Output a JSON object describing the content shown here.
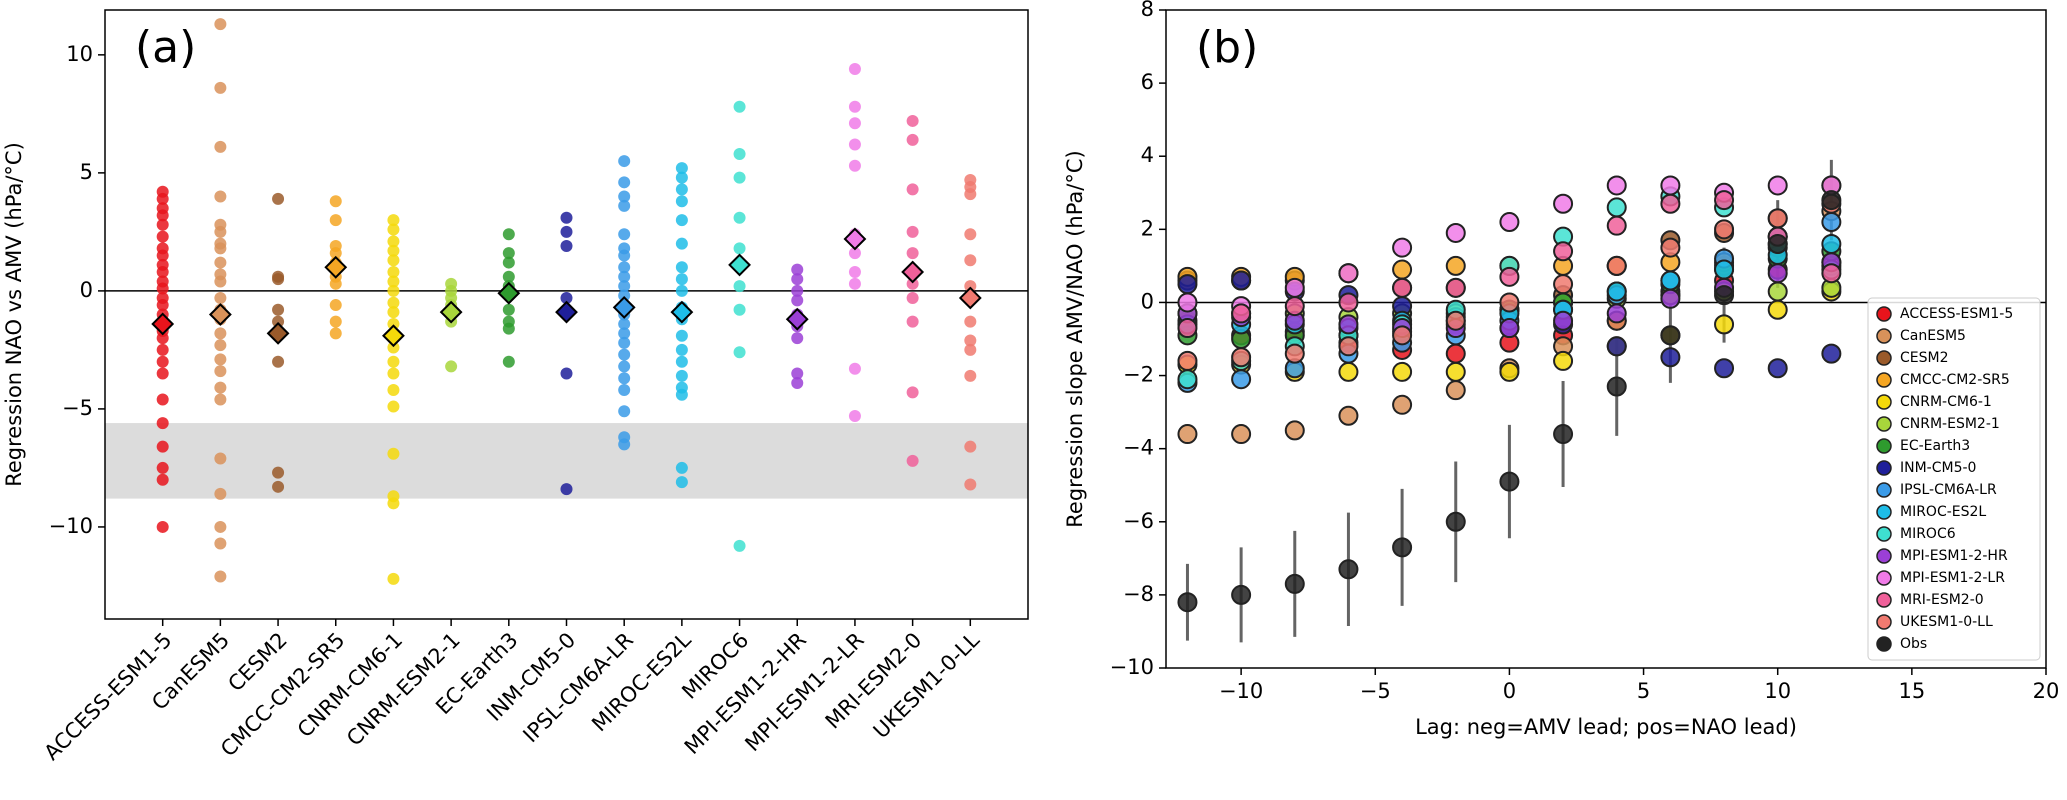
{
  "chart_data": [
    {
      "type": "strip",
      "panel_label": "(a)",
      "ylabel": "Regression NAO vs AMV (hPa/°C)",
      "categories": [
        "ACCESS-ESM1-5",
        "CanESM5",
        "CESM2",
        "CMCC-CM2-SR5",
        "CNRM-CM6-1",
        "CNRM-ESM2-1",
        "EC-Earth3",
        "INM-CM5-0",
        "IPSL-CM6A-LR",
        "MIROC-ES2L",
        "MIROC6",
        "MPI-ESM1-2-HR",
        "MPI-ESM1-2-LR",
        "MRI-ESM2-0",
        "UKESM1-0-LL"
      ],
      "colors": [
        "#e8141c",
        "#d9925a",
        "#9a5a2a",
        "#f5a623",
        "#f5d90a",
        "#a8d63b",
        "#2e9b2e",
        "#1f1f9a",
        "#3a9be8",
        "#1ebde8",
        "#3ee0d0",
        "#9b3fd6",
        "#f07be8",
        "#f0609a",
        "#f07a70"
      ],
      "members": [
        [
          4.2,
          3.9,
          3.5,
          3.2,
          2.8,
          2.3,
          1.8,
          1.5,
          1.1,
          0.8,
          0.4,
          0.1,
          -0.3,
          -0.6,
          -1,
          -1.3,
          -1.7,
          -2,
          -2.5,
          -3,
          -3.5,
          -4.6,
          -5.6,
          -6.6,
          -7.5,
          -8,
          -10
        ],
        [
          11.3,
          8.6,
          6.1,
          4,
          2.8,
          2.5,
          2,
          1.8,
          1.2,
          0.7,
          0.4,
          -0.3,
          -0.8,
          -1.2,
          -1.8,
          -2.3,
          -2.9,
          -3.4,
          -4.1,
          -4.6,
          -7.1,
          -8.6,
          -10,
          -10.7,
          -12.1
        ],
        [
          3.9,
          0.6,
          0.5,
          -0.8,
          -1.3,
          -1.9,
          -3,
          -7.7,
          -8.3
        ],
        [
          3.8,
          3,
          1.9,
          1.6,
          1.2,
          0.6,
          0.3,
          -0.6,
          -1.3,
          -1.8
        ],
        [
          3,
          2.6,
          2.1,
          1.7,
          1.3,
          0.8,
          0.4,
          0,
          -0.5,
          -0.9,
          -1.4,
          -1.8,
          -2.4,
          -3,
          -3.5,
          -4.2,
          -4.9,
          -6.9,
          -8.7,
          -9,
          -12.2
        ],
        [
          0.3,
          0,
          -0.3,
          -0.6,
          -1.3,
          -3.2
        ],
        [
          2.4,
          1.6,
          1.2,
          0.6,
          0.2,
          -0.2,
          -0.8,
          -1.3,
          -1.6,
          -3
        ],
        [
          3.1,
          2.5,
          1.9,
          -0.3,
          -0.9,
          -3.5,
          -8.4
        ],
        [
          5.5,
          4.6,
          4,
          3.6,
          2.4,
          1.8,
          1.5,
          1,
          0.6,
          0.2,
          -0.2,
          -0.6,
          -1,
          -1.4,
          -1.8,
          -2.2,
          -2.7,
          -3.2,
          -3.7,
          -4.2,
          -5.1,
          -6.2,
          -6.5
        ],
        [
          5.2,
          4.8,
          4.3,
          3.8,
          3,
          2,
          1,
          0.5,
          0,
          -0.7,
          -1.2,
          -1.9,
          -2.5,
          -3,
          -3.6,
          -4.1,
          -4.4,
          -7.5,
          -8.1
        ],
        [
          7.8,
          5.8,
          4.8,
          3.1,
          1.8,
          1.1,
          0.2,
          -0.8,
          -2.6,
          -10.8
        ],
        [
          0.9,
          0.5,
          0,
          -0.4,
          -1,
          -1.5,
          -2,
          -3.5,
          -3.9
        ],
        [
          9.4,
          7.8,
          7.1,
          6.2,
          5.3,
          2.4,
          1.6,
          0.8,
          0.3,
          -3.3,
          -5.3
        ],
        [
          7.2,
          6.4,
          4.3,
          2.5,
          1.6,
          0.8,
          0.3,
          -0.3,
          -1.3,
          -4.3,
          -7.2
        ],
        [
          4.7,
          4.4,
          4.1,
          2.4,
          1.3,
          0.2,
          -0.4,
          -1.3,
          -2.1,
          -2.5,
          -3.6,
          -6.6,
          -8.2
        ]
      ],
      "means": [
        -1.4,
        -1,
        -1.8,
        1,
        -1.9,
        -0.9,
        -0.1,
        -0.9,
        -0.7,
        -0.9,
        1.1,
        -1.2,
        2.2,
        0.8,
        -0.3
      ],
      "band": [
        -8.8,
        -5.6
      ],
      "band_color": "#dcdcdc",
      "hline": 0,
      "ylim": [
        -13.9,
        11.9
      ],
      "yticks": [
        {
          "value": -10,
          "label": "−10"
        },
        {
          "value": -5,
          "label": "−5"
        },
        0,
        5,
        10
      ]
    },
    {
      "type": "scatter",
      "panel_label": "(b)",
      "xlabel": "Lag: neg=AMV lead; pos=NAO lead)",
      "ylabel": "Regression slope AMV/NAO (hPa/°C)",
      "x": [
        -12,
        -10,
        -8,
        -6,
        -4,
        -2,
        0,
        2,
        4,
        6,
        8,
        10,
        12
      ],
      "series": [
        {
          "name": "ACCESS-ESM1-5",
          "color": "#e8141c",
          "values": [
            -0.5,
            -0.9,
            -0.8,
            -1.1,
            -1.3,
            -1.4,
            -1.1,
            -0.9,
            -0.5,
            0.3,
            0.6,
            0.9,
            1.1
          ]
        },
        {
          "name": "CanESM5",
          "color": "#d9925a",
          "values": [
            -3.6,
            -3.6,
            -3.5,
            -3.1,
            -2.8,
            -2.4,
            -1.8,
            -1.2,
            -0.5,
            0.2,
            1.0,
            1.8,
            2.5
          ]
        },
        {
          "name": "CESM2",
          "color": "#9a5a2a",
          "values": [
            0.6,
            0.6,
            0.6,
            0.8,
            0.4,
            0.4,
            -0.2,
            0.2,
            1.0,
            1.7,
            1.9,
            2.3,
            3.2
          ]
        },
        {
          "name": "CMCC-CM2-SR5",
          "color": "#f5a623",
          "values": [
            0.7,
            0.7,
            0.7,
            0.8,
            0.9,
            1.0,
            1.0,
            1.0,
            1.0,
            1.1,
            1.1,
            1.5,
            1.0
          ]
        },
        {
          "name": "CNRM-CM6-1",
          "color": "#f5d90a",
          "values": [
            -1.7,
            -1.7,
            -1.9,
            -1.9,
            -1.9,
            -1.9,
            -1.9,
            -1.6,
            -1.2,
            -0.9,
            -0.6,
            -0.2,
            0.3
          ]
        },
        {
          "name": "CNRM-ESM2-1",
          "color": "#a8d63b",
          "values": [
            -0.3,
            -0.3,
            -0.3,
            -0.4,
            -0.3,
            -0.3,
            -0.2,
            0.0,
            0.1,
            0.2,
            0.3,
            0.3,
            0.4
          ]
        },
        {
          "name": "EC-Earth3",
          "color": "#2e9b2e",
          "values": [
            -0.9,
            -1.0,
            -0.9,
            -0.9,
            -0.8,
            -0.5,
            -0.2,
            0.0,
            0.3,
            0.5,
            0.9,
            1.2,
            1.4
          ]
        },
        {
          "name": "INM-CM5-0",
          "color": "#1f1f9a",
          "values": [
            0.5,
            0.6,
            0.3,
            0.2,
            -0.1,
            -0.6,
            -0.7,
            -0.6,
            -1.2,
            -1.5,
            -1.8,
            -1.8,
            -1.4
          ]
        },
        {
          "name": "IPSL-CM6A-LR",
          "color": "#3a9be8",
          "values": [
            -2.2,
            -2.1,
            -1.8,
            -1.4,
            -1.1,
            -0.9,
            -0.5,
            -0.2,
            0.2,
            0.6,
            1.2,
            1.8,
            2.2
          ]
        },
        {
          "name": "MIROC-ES2L",
          "color": "#1ebde8",
          "values": [
            -0.6,
            -0.6,
            -0.6,
            -0.7,
            -0.5,
            -0.4,
            -0.3,
            -0.2,
            0.3,
            0.6,
            0.9,
            1.3,
            1.6
          ]
        },
        {
          "name": "MIROC6",
          "color": "#3ee0d0",
          "values": [
            -2.1,
            -1.6,
            -1.2,
            -0.9,
            -0.6,
            -0.2,
            1.0,
            1.8,
            2.6,
            2.9,
            2.6,
            1.6,
            0.9
          ]
        },
        {
          "name": "MPI-ESM1-2-HR",
          "color": "#9b3fd6",
          "values": [
            -0.3,
            -0.4,
            -0.5,
            -0.6,
            -0.7,
            -0.7,
            -0.7,
            -0.5,
            -0.3,
            0.1,
            0.4,
            0.8,
            1.1
          ]
        },
        {
          "name": "MPI-ESM1-2-LR",
          "color": "#f07be8",
          "values": [
            0.0,
            -0.1,
            0.4,
            0.8,
            1.5,
            1.9,
            2.2,
            2.7,
            3.2,
            3.2,
            3.0,
            3.2,
            3.2
          ]
        },
        {
          "name": "MRI-ESM2-0",
          "color": "#f0609a",
          "values": [
            -0.7,
            -0.3,
            -0.1,
            0.0,
            0.4,
            0.4,
            0.7,
            1.4,
            2.1,
            2.7,
            2.8,
            1.8,
            0.8
          ]
        },
        {
          "name": "UKESM1-0-LL",
          "color": "#f07a70",
          "values": [
            -1.6,
            -1.5,
            -1.4,
            -1.2,
            -0.9,
            -0.5,
            0.0,
            0.5,
            1.0,
            1.5,
            2.0,
            2.3,
            2.7
          ]
        },
        {
          "name": "Obs",
          "color": "#222222",
          "values": [
            -8.2,
            -8.0,
            -7.7,
            -7.3,
            -6.7,
            -6.0,
            -4.9,
            -3.6,
            -2.3,
            -0.9,
            0.2,
            1.6,
            2.8
          ],
          "errors": [
            1.05,
            1.3,
            1.45,
            1.55,
            1.6,
            1.65,
            1.55,
            1.45,
            1.35,
            1.3,
            1.3,
            1.2,
            1.1
          ]
        }
      ],
      "hline": 0,
      "xlim": [
        -12.8,
        20
      ],
      "xticks": [
        {
          "value": -10,
          "label": "−10"
        },
        {
          "value": -5,
          "label": "−5"
        },
        0,
        5,
        10,
        15,
        20
      ],
      "ylim": [
        -10,
        8
      ],
      "yticks": [
        {
          "value": -10,
          "label": "−10"
        },
        {
          "value": -8,
          "label": "−8"
        },
        {
          "value": -6,
          "label": "−6"
        },
        {
          "value": -4,
          "label": "−4"
        },
        {
          "value": -2,
          "label": "−2"
        },
        0,
        2,
        4,
        6,
        8
      ],
      "legend": "lower right"
    }
  ]
}
